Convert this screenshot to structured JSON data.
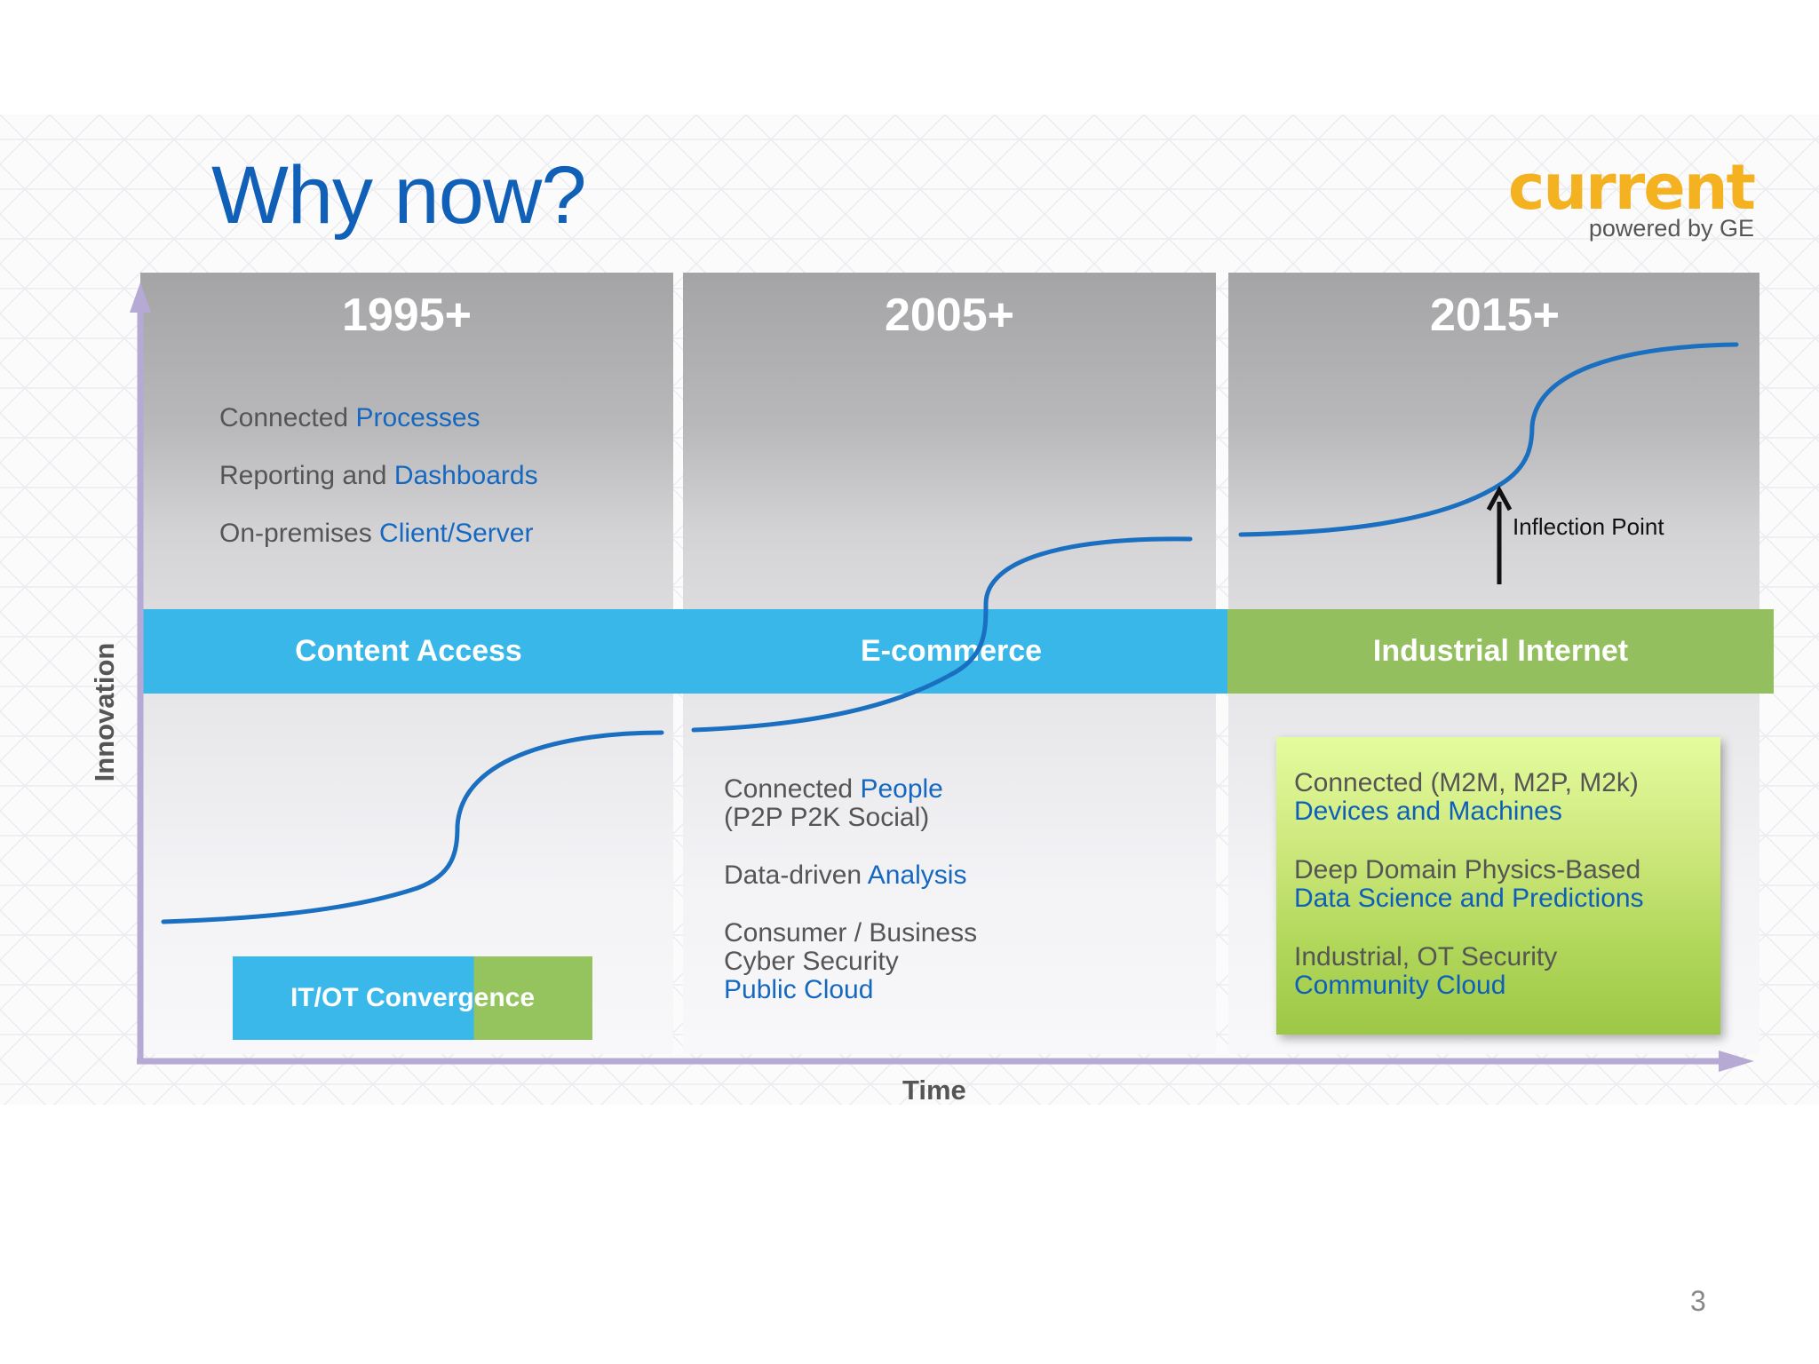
{
  "slide": {
    "title": "Why now?",
    "page_number": "3"
  },
  "logo": {
    "word": "current",
    "tagline": "powered by GE",
    "color": "#f4b221"
  },
  "axes": {
    "y_label": "Innovation",
    "x_label": "Time"
  },
  "eras": [
    {
      "year": "1995+",
      "band": "Content Access",
      "band_color": "#38b7e8",
      "features": [
        {
          "prefix": "Connected ",
          "highlight": "Processes"
        },
        {
          "prefix": "Reporting and ",
          "highlight": "Dashboards"
        },
        {
          "prefix": "On-premises ",
          "highlight": "Client/Server"
        }
      ],
      "tag": "IT/OT Convergence"
    },
    {
      "year": "2005+",
      "band": "E-commerce",
      "band_color": "#38b7e8",
      "features": [
        {
          "lines": [
            "Connected ",
            "(P2P P2K Social)"
          ],
          "highlight": "People"
        },
        {
          "prefix": "Data-driven ",
          "highlight": "Analysis"
        },
        {
          "lines": [
            "Consumer / Business",
            "Cyber Security"
          ],
          "highlight": "Public Cloud"
        }
      ]
    },
    {
      "year": "2015+",
      "band": "Industrial Internet",
      "band_color": "#93bf5f",
      "features": [
        {
          "line": "Connected (M2M, M2P, M2k)",
          "highlight": "Devices and Machines"
        },
        {
          "line": "Deep Domain  Physics-Based",
          "highlight": "Data Science and Predictions"
        },
        {
          "line": "Industrial, OT Security",
          "highlight": "Community Cloud"
        }
      ],
      "annotation": "Inflection Point"
    }
  ],
  "colors": {
    "title": "#1060b8",
    "highlight": "#1568c0",
    "curve": "#1a6fc0",
    "axis": "#b6a9d4"
  }
}
